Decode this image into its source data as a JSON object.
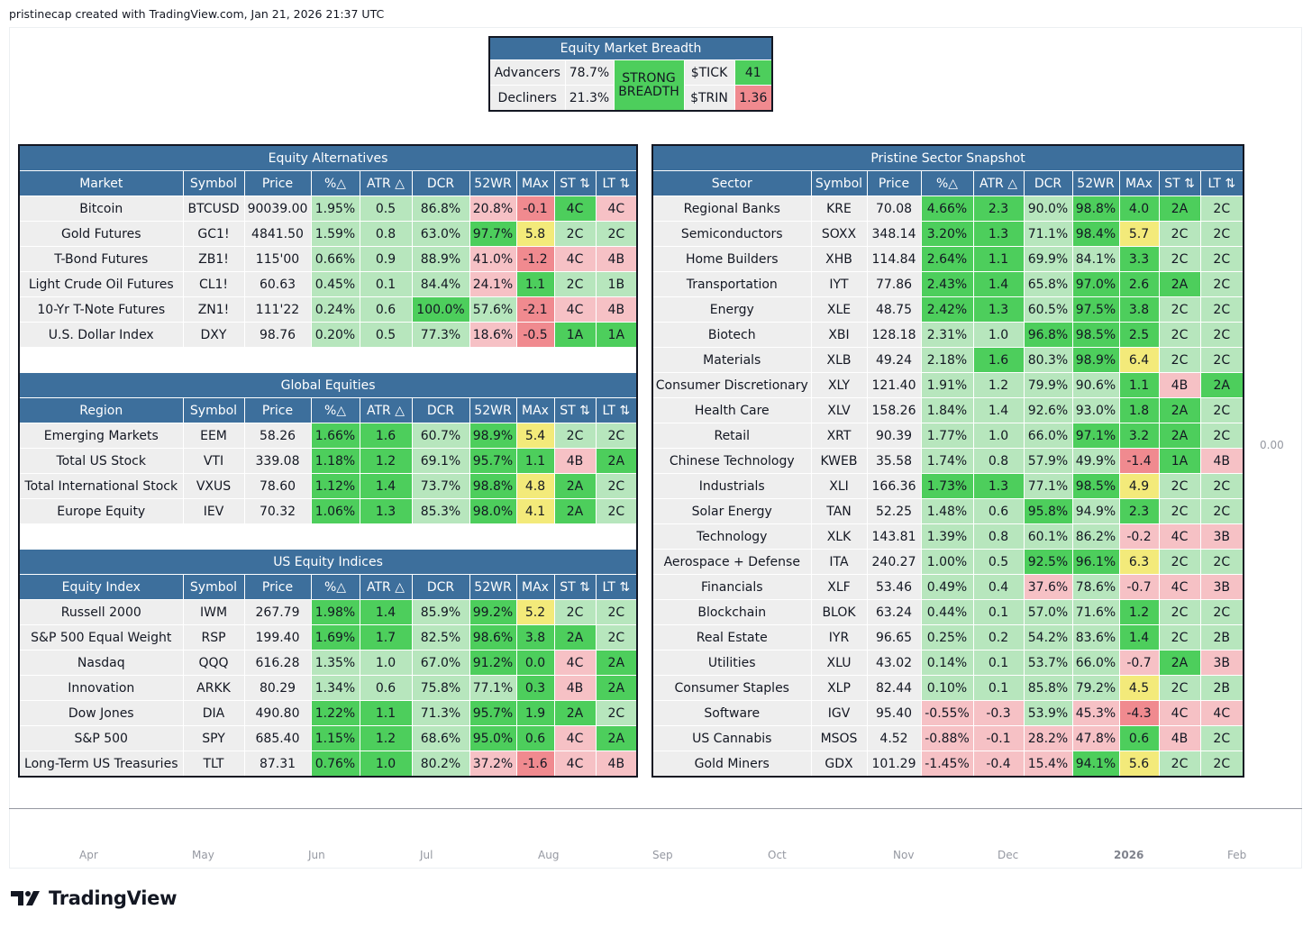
{
  "header": {
    "text": "pristinecap created with TradingView.com, Jan 21, 2026 21:37 UTC"
  },
  "price_axis": {
    "value": "0.00"
  },
  "time_axis": [
    "Apr",
    "May",
    "Jun",
    "Jul",
    "Aug",
    "Sep",
    "Oct",
    "Nov",
    "Dec",
    "2026",
    "Feb"
  ],
  "brand": {
    "name": "TradingView"
  },
  "breadth": {
    "title": "Equity Market Breadth",
    "advancers_label": "Advancers",
    "advancers_value": "78.7%",
    "decliners_label": "Decliners",
    "decliners_value": "21.3%",
    "status_line1": "STRONG",
    "status_line2": "BREADTH",
    "tick_label": "$TICK",
    "tick_value": "41",
    "trin_label": "$TRIN",
    "trin_value": "1.36"
  },
  "columns": {
    "price": "Price",
    "pct": "%△",
    "atr": "ATR △",
    "dcr": "DCR",
    "wr52": "52WR",
    "max": "MAx",
    "st": "ST ⇅",
    "lt": "LT ⇅",
    "symbol": "Symbol"
  },
  "equity_alternatives": {
    "title": "Equity Alternatives",
    "first_col": "Market",
    "rows": [
      {
        "name": "Bitcoin",
        "symbol": "BTCUSD",
        "price": "90039.00",
        "pct": "1.95%",
        "atr": "0.5",
        "dcr": "86.8%",
        "wr": "20.8%",
        "max": "-0.1",
        "st": "4C",
        "lt": "4C"
      },
      {
        "name": "Gold Futures",
        "symbol": "GC1!",
        "price": "4841.50",
        "pct": "1.59%",
        "atr": "0.8",
        "dcr": "63.0%",
        "wr": "97.7%",
        "max": "5.8",
        "st": "2C",
        "lt": "2C"
      },
      {
        "name": "T-Bond Futures",
        "symbol": "ZB1!",
        "price": "115'00",
        "pct": "0.66%",
        "atr": "0.9",
        "dcr": "88.9%",
        "wr": "41.0%",
        "max": "-1.2",
        "st": "4C",
        "lt": "4B"
      },
      {
        "name": "Light Crude Oil Futures",
        "symbol": "CL1!",
        "price": "60.63",
        "pct": "0.45%",
        "atr": "0.1",
        "dcr": "84.4%",
        "wr": "24.1%",
        "max": "1.1",
        "st": "2C",
        "lt": "1B"
      },
      {
        "name": "10-Yr T-Note Futures",
        "symbol": "ZN1!",
        "price": "111'22",
        "pct": "0.24%",
        "atr": "0.6",
        "dcr": "100.0%",
        "wr": "57.6%",
        "max": "-2.1",
        "st": "4C",
        "lt": "4B"
      },
      {
        "name": "U.S. Dollar Index",
        "symbol": "DXY",
        "price": "98.76",
        "pct": "0.20%",
        "atr": "0.5",
        "dcr": "77.3%",
        "wr": "18.6%",
        "max": "-0.5",
        "st": "1A",
        "lt": "1A"
      }
    ]
  },
  "global_equities": {
    "title": "Global Equities",
    "first_col": "Region",
    "rows": [
      {
        "name": "Emerging Markets",
        "symbol": "EEM",
        "price": "58.26",
        "pct": "1.66%",
        "atr": "1.6",
        "dcr": "60.7%",
        "wr": "98.9%",
        "max": "5.4",
        "st": "2C",
        "lt": "2C"
      },
      {
        "name": "Total US Stock",
        "symbol": "VTI",
        "price": "339.08",
        "pct": "1.18%",
        "atr": "1.2",
        "dcr": "69.1%",
        "wr": "95.7%",
        "max": "1.1",
        "st": "4B",
        "lt": "2A"
      },
      {
        "name": "Total International Stock",
        "symbol": "VXUS",
        "price": "78.60",
        "pct": "1.12%",
        "atr": "1.4",
        "dcr": "73.7%",
        "wr": "98.8%",
        "max": "4.8",
        "st": "2A",
        "lt": "2C"
      },
      {
        "name": "Europe Equity",
        "symbol": "IEV",
        "price": "70.32",
        "pct": "1.06%",
        "atr": "1.3",
        "dcr": "85.3%",
        "wr": "98.0%",
        "max": "4.1",
        "st": "2A",
        "lt": "2C"
      }
    ]
  },
  "us_indices": {
    "title": "US Equity Indices",
    "first_col": "Equity Index",
    "rows": [
      {
        "name": "Russell 2000",
        "symbol": "IWM",
        "price": "267.79",
        "pct": "1.98%",
        "atr": "1.4",
        "dcr": "85.9%",
        "wr": "99.2%",
        "max": "5.2",
        "st": "2C",
        "lt": "2C"
      },
      {
        "name": "S&P 500 Equal Weight",
        "symbol": "RSP",
        "price": "199.40",
        "pct": "1.69%",
        "atr": "1.7",
        "dcr": "82.5%",
        "wr": "98.6%",
        "max": "3.8",
        "st": "2A",
        "lt": "2C"
      },
      {
        "name": "Nasdaq",
        "symbol": "QQQ",
        "price": "616.28",
        "pct": "1.35%",
        "atr": "1.0",
        "dcr": "67.0%",
        "wr": "91.2%",
        "max": "0.0",
        "st": "4C",
        "lt": "2A"
      },
      {
        "name": "Innovation",
        "symbol": "ARKK",
        "price": "80.29",
        "pct": "1.34%",
        "atr": "0.6",
        "dcr": "75.8%",
        "wr": "77.1%",
        "max": "0.3",
        "st": "4B",
        "lt": "2A"
      },
      {
        "name": "Dow Jones",
        "symbol": "DIA",
        "price": "490.80",
        "pct": "1.22%",
        "atr": "1.1",
        "dcr": "71.3%",
        "wr": "95.7%",
        "max": "1.9",
        "st": "2A",
        "lt": "2C"
      },
      {
        "name": "S&P 500",
        "symbol": "SPY",
        "price": "685.40",
        "pct": "1.15%",
        "atr": "1.2",
        "dcr": "68.6%",
        "wr": "95.0%",
        "max": "0.6",
        "st": "4C",
        "lt": "2A"
      },
      {
        "name": "Long-Term US Treasuries",
        "symbol": "TLT",
        "price": "87.31",
        "pct": "0.76%",
        "atr": "1.0",
        "dcr": "80.2%",
        "wr": "37.2%",
        "max": "-1.6",
        "st": "4C",
        "lt": "4B"
      }
    ]
  },
  "sectors": {
    "title": "Pristine Sector Snapshot",
    "first_col": "Sector",
    "rows": [
      {
        "name": "Regional Banks",
        "symbol": "KRE",
        "price": "70.08",
        "pct": "4.66%",
        "atr": "2.3",
        "dcr": "90.0%",
        "wr": "98.8%",
        "max": "4.0",
        "st": "2A",
        "lt": "2C"
      },
      {
        "name": "Semiconductors",
        "symbol": "SOXX",
        "price": "348.14",
        "pct": "3.20%",
        "atr": "1.3",
        "dcr": "71.1%",
        "wr": "98.4%",
        "max": "5.7",
        "st": "2C",
        "lt": "2C"
      },
      {
        "name": "Home Builders",
        "symbol": "XHB",
        "price": "114.84",
        "pct": "2.64%",
        "atr": "1.1",
        "dcr": "69.9%",
        "wr": "84.1%",
        "max": "3.3",
        "st": "2C",
        "lt": "2C"
      },
      {
        "name": "Transportation",
        "symbol": "IYT",
        "price": "77.86",
        "pct": "2.43%",
        "atr": "1.4",
        "dcr": "65.8%",
        "wr": "97.0%",
        "max": "2.6",
        "st": "2A",
        "lt": "2C"
      },
      {
        "name": "Energy",
        "symbol": "XLE",
        "price": "48.75",
        "pct": "2.42%",
        "atr": "1.3",
        "dcr": "60.5%",
        "wr": "97.5%",
        "max": "3.8",
        "st": "2C",
        "lt": "2C"
      },
      {
        "name": "Biotech",
        "symbol": "XBI",
        "price": "128.18",
        "pct": "2.31%",
        "atr": "1.0",
        "dcr": "96.8%",
        "wr": "98.5%",
        "max": "2.5",
        "st": "2C",
        "lt": "2C"
      },
      {
        "name": "Materials",
        "symbol": "XLB",
        "price": "49.24",
        "pct": "2.18%",
        "atr": "1.6",
        "dcr": "80.3%",
        "wr": "98.9%",
        "max": "6.4",
        "st": "2C",
        "lt": "2C"
      },
      {
        "name": "Consumer Discretionary",
        "symbol": "XLY",
        "price": "121.40",
        "pct": "1.91%",
        "atr": "1.2",
        "dcr": "79.9%",
        "wr": "90.6%",
        "max": "1.1",
        "st": "4B",
        "lt": "2A"
      },
      {
        "name": "Health Care",
        "symbol": "XLV",
        "price": "158.26",
        "pct": "1.84%",
        "atr": "1.4",
        "dcr": "92.6%",
        "wr": "93.0%",
        "max": "1.8",
        "st": "2A",
        "lt": "2C"
      },
      {
        "name": "Retail",
        "symbol": "XRT",
        "price": "90.39",
        "pct": "1.77%",
        "atr": "1.0",
        "dcr": "66.0%",
        "wr": "97.1%",
        "max": "3.2",
        "st": "2A",
        "lt": "2C"
      },
      {
        "name": "Chinese Technology",
        "symbol": "KWEB",
        "price": "35.58",
        "pct": "1.74%",
        "atr": "0.8",
        "dcr": "57.9%",
        "wr": "49.9%",
        "max": "-1.4",
        "st": "1A",
        "lt": "4B"
      },
      {
        "name": "Industrials",
        "symbol": "XLI",
        "price": "166.36",
        "pct": "1.73%",
        "atr": "1.3",
        "dcr": "77.1%",
        "wr": "98.5%",
        "max": "4.9",
        "st": "2C",
        "lt": "2C"
      },
      {
        "name": "Solar Energy",
        "symbol": "TAN",
        "price": "52.25",
        "pct": "1.48%",
        "atr": "0.6",
        "dcr": "95.8%",
        "wr": "94.9%",
        "max": "2.3",
        "st": "2C",
        "lt": "2C"
      },
      {
        "name": "Technology",
        "symbol": "XLK",
        "price": "143.81",
        "pct": "1.39%",
        "atr": "0.8",
        "dcr": "60.1%",
        "wr": "86.2%",
        "max": "-0.2",
        "st": "4C",
        "lt": "3B"
      },
      {
        "name": "Aerospace + Defense",
        "symbol": "ITA",
        "price": "240.27",
        "pct": "1.00%",
        "atr": "0.5",
        "dcr": "92.5%",
        "wr": "96.1%",
        "max": "6.3",
        "st": "2C",
        "lt": "2C"
      },
      {
        "name": "Financials",
        "symbol": "XLF",
        "price": "53.46",
        "pct": "0.49%",
        "atr": "0.4",
        "dcr": "37.6%",
        "wr": "78.6%",
        "max": "-0.7",
        "st": "4C",
        "lt": "3B"
      },
      {
        "name": "Blockchain",
        "symbol": "BLOK",
        "price": "63.24",
        "pct": "0.44%",
        "atr": "0.1",
        "dcr": "57.0%",
        "wr": "71.6%",
        "max": "1.2",
        "st": "2C",
        "lt": "2C"
      },
      {
        "name": "Real Estate",
        "symbol": "IYR",
        "price": "96.65",
        "pct": "0.25%",
        "atr": "0.2",
        "dcr": "54.2%",
        "wr": "83.6%",
        "max": "1.4",
        "st": "2C",
        "lt": "2B"
      },
      {
        "name": "Utilities",
        "symbol": "XLU",
        "price": "43.02",
        "pct": "0.14%",
        "atr": "0.1",
        "dcr": "53.7%",
        "wr": "66.0%",
        "max": "-0.7",
        "st": "2A",
        "lt": "3B"
      },
      {
        "name": "Consumer Staples",
        "symbol": "XLP",
        "price": "82.44",
        "pct": "0.10%",
        "atr": "0.1",
        "dcr": "85.8%",
        "wr": "79.2%",
        "max": "4.5",
        "st": "2C",
        "lt": "2B"
      },
      {
        "name": "Software",
        "symbol": "IGV",
        "price": "95.40",
        "pct": "-0.55%",
        "atr": "-0.3",
        "dcr": "53.9%",
        "wr": "45.3%",
        "max": "-4.3",
        "st": "4C",
        "lt": "4C"
      },
      {
        "name": "US Cannabis",
        "symbol": "MSOS",
        "price": "4.52",
        "pct": "-0.88%",
        "atr": "-0.1",
        "dcr": "28.2%",
        "wr": "47.8%",
        "max": "0.6",
        "st": "4B",
        "lt": "2C"
      },
      {
        "name": "Gold Miners",
        "symbol": "GDX",
        "price": "101.29",
        "pct": "-1.45%",
        "atr": "-0.4",
        "dcr": "15.4%",
        "wr": "94.1%",
        "max": "5.6",
        "st": "2C",
        "lt": "2C"
      }
    ]
  }
}
